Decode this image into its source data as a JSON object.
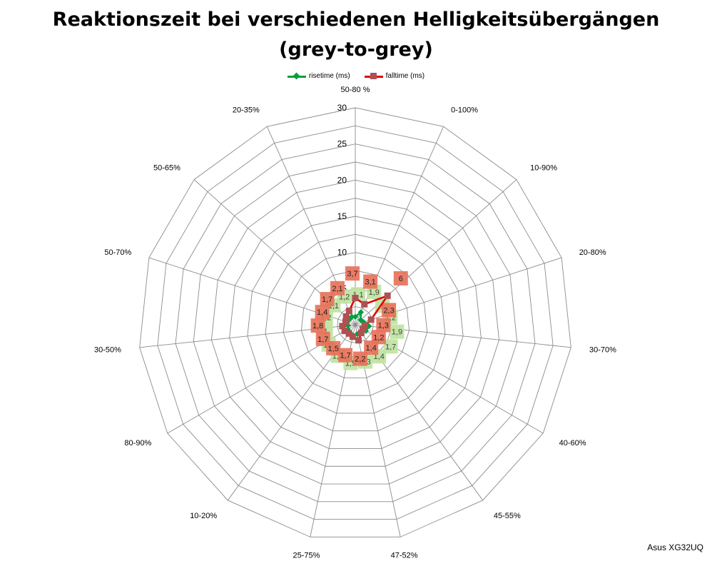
{
  "chart_data": {
    "type": "radar",
    "title_line1": "Reaktionszeit bei verschiedenen Helligkeitsübergängen",
    "title_line2": "(grey-to-grey)",
    "categories": [
      "50-80 %",
      "0-100%",
      "10-90%",
      "20-80%",
      "30-70%",
      "40-60%",
      "45-55%",
      "47-52%",
      "25-75%",
      "10-20%",
      "80-90%",
      "30-50%",
      "50-70%",
      "50-65%",
      "20-35%"
    ],
    "rlim": [
      0,
      30
    ],
    "ticks": [
      "0",
      "5",
      "10",
      "15",
      "20",
      "25",
      "30"
    ],
    "tick_values": [
      0,
      5,
      10,
      15,
      20,
      25,
      30
    ],
    "series": [
      {
        "name": "risetime (ms)",
        "color": "#00a040",
        "values": [
          1.1,
          1.9,
          1.0,
          1.2,
          1.9,
          1.7,
          1.4,
          1.3,
          1.5,
          1.3,
          1.2,
          1.0,
          1.2,
          1.1,
          1.2
        ],
        "labels": [
          "1,1",
          "1,9",
          "1",
          "1,2",
          "1,9",
          "1,7",
          "1,4",
          "1,3",
          "1,5",
          "1,3",
          "1,2",
          "1",
          "1,2",
          "1,1",
          "1,2"
        ]
      },
      {
        "name": "falltime (ms)",
        "color": "#e00000",
        "values": [
          3.7,
          3.1,
          6.0,
          2.3,
          1.3,
          1.2,
          1.4,
          2.2,
          1.7,
          1.5,
          1.7,
          1.8,
          1.4,
          1.7,
          2.1
        ],
        "labels": [
          "3,7",
          "3,1",
          "6",
          "2,3",
          "1,3",
          "1,2",
          "1,4",
          "2,2",
          "1,7",
          "1,5",
          "1,7",
          "1,8",
          "1,4",
          "1,7",
          "2,1"
        ]
      }
    ],
    "legend_position": "top",
    "grid": true
  },
  "watermark": "Asus XG32UQ"
}
